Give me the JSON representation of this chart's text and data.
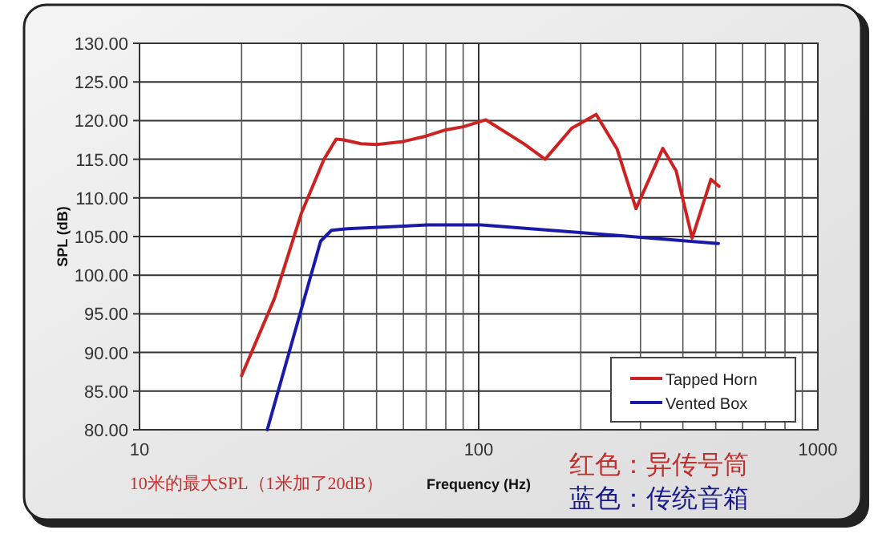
{
  "chart_data": {
    "type": "line",
    "xlabel": "Frequency (Hz)",
    "ylabel": "SPL (dB)",
    "log": "x",
    "xlim": [
      10,
      1000
    ],
    "xticks": [
      10,
      100,
      1000
    ],
    "ylim": [
      80,
      130
    ],
    "yticks": [
      {
        "value": 80,
        "label": "80.00"
      },
      {
        "value": 85,
        "label": "85.00"
      },
      {
        "value": 90,
        "label": "90.00"
      },
      {
        "value": 95,
        "label": "95.00"
      },
      {
        "value": 100,
        "label": "100.00"
      },
      {
        "value": 105,
        "label": "105.00"
      },
      {
        "value": 110,
        "label": "110.00"
      },
      {
        "value": 115,
        "label": "115.00"
      },
      {
        "value": 120,
        "label": "120.00"
      },
      {
        "value": 125,
        "label": "125.00"
      },
      {
        "value": 130,
        "label": "130.00"
      }
    ],
    "grid": true,
    "legend": "bottom right",
    "marker": "none",
    "line_style": "solid",
    "annotations": [
      "10米的最大SPL（1米加了20dB）",
      "红色：异传号筒",
      "蓝色：传统音箱"
    ],
    "series": [
      {
        "name": "Tapped Horn",
        "color": "#cc2222",
        "x": [
          20,
          25,
          30,
          35,
          38,
          40,
          45,
          50,
          60,
          70,
          80,
          90,
          105,
          136,
          157,
          188,
          222,
          256,
          291,
          349,
          382,
          426,
          484,
          511
        ],
        "values": [
          87,
          97,
          108,
          115,
          117.6,
          117.5,
          117,
          116.9,
          117.3,
          118,
          118.8,
          119.2,
          120.1,
          117,
          115,
          119,
          120.8,
          116.3,
          108.6,
          116.4,
          113.5,
          104.8,
          112.4,
          111.5
        ]
      },
      {
        "name": "Vented Box",
        "color": "#1a1aaa",
        "x": [
          23.8,
          29.6,
          34.2,
          36.8,
          41,
          70.7,
          101.6,
          202,
          509
        ],
        "values": [
          80,
          94.7,
          104.4,
          105.8,
          106,
          106.5,
          106.5,
          105.5,
          104.1
        ]
      }
    ]
  }
}
